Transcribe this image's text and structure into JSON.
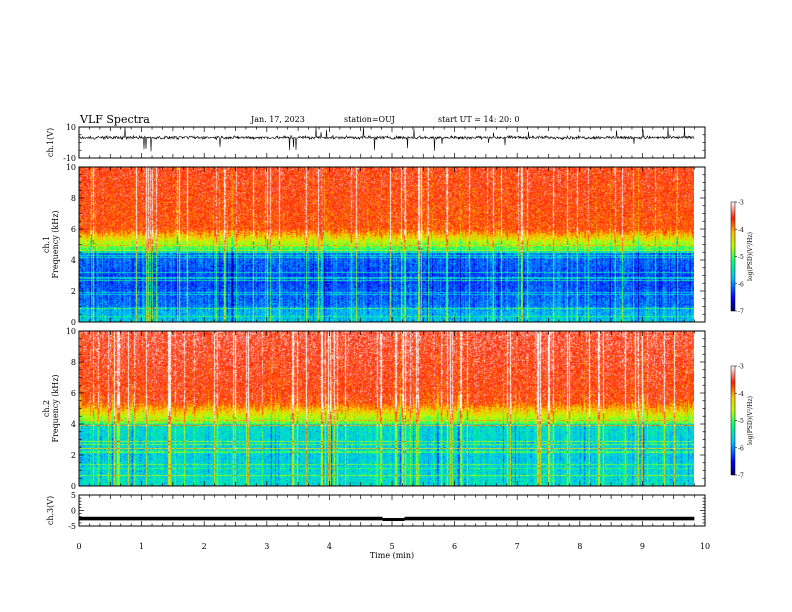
{
  "header": {
    "title": "VLF Spectra",
    "date": "Jan. 17, 2023",
    "station": "station=OUJ",
    "start": "start  UT =   14: 20: 0"
  },
  "chart_data": [
    {
      "type": "line",
      "panel": "ch1-waveform",
      "ylabel": "ch.1(V)",
      "ylim": [
        -10,
        10
      ],
      "yticks": [
        10,
        -10
      ],
      "xlim": [
        0,
        10
      ],
      "baseline": 3.2,
      "color": "#000000"
    },
    {
      "type": "heatmap",
      "panel": "ch1-spectrogram",
      "ylabel": "ch.1\nFrequency (kHz)",
      "ylim": [
        0,
        10
      ],
      "yticks": [
        0,
        2,
        4,
        6,
        8,
        10
      ],
      "xlim": [
        0,
        9.83
      ],
      "colorbar": {
        "label": "log(PSD)(V²/Hz)",
        "ticks": [
          -3,
          -4,
          -5,
          -6,
          -7
        ],
        "range": [
          -7,
          -3
        ]
      }
    },
    {
      "type": "heatmap",
      "panel": "ch2-spectrogram",
      "ylabel": "ch.2\nFrequency (kHz)",
      "ylim": [
        0,
        10
      ],
      "yticks": [
        0,
        2,
        4,
        6,
        8,
        10
      ],
      "xlim": [
        0,
        9.83
      ],
      "colorbar": {
        "label": "log(PSD)(V²/Hz)",
        "ticks": [
          -3,
          -4,
          -5,
          -6,
          -7
        ],
        "range": [
          -7,
          -3
        ]
      }
    },
    {
      "type": "line",
      "panel": "ch3-waveform",
      "ylabel": "ch.3(V)",
      "ylim": [
        -5,
        5
      ],
      "yticks": [
        5,
        0,
        -5
      ],
      "xlim": [
        0,
        10
      ],
      "xlabel": "Time (min)",
      "xticks": [
        0,
        1,
        2,
        3,
        4,
        5,
        6,
        7,
        8,
        9,
        10
      ],
      "level": -2.6,
      "dip": {
        "x": [
          4.85,
          5.2
        ],
        "level": -2.9
      },
      "color": "#000000"
    }
  ]
}
